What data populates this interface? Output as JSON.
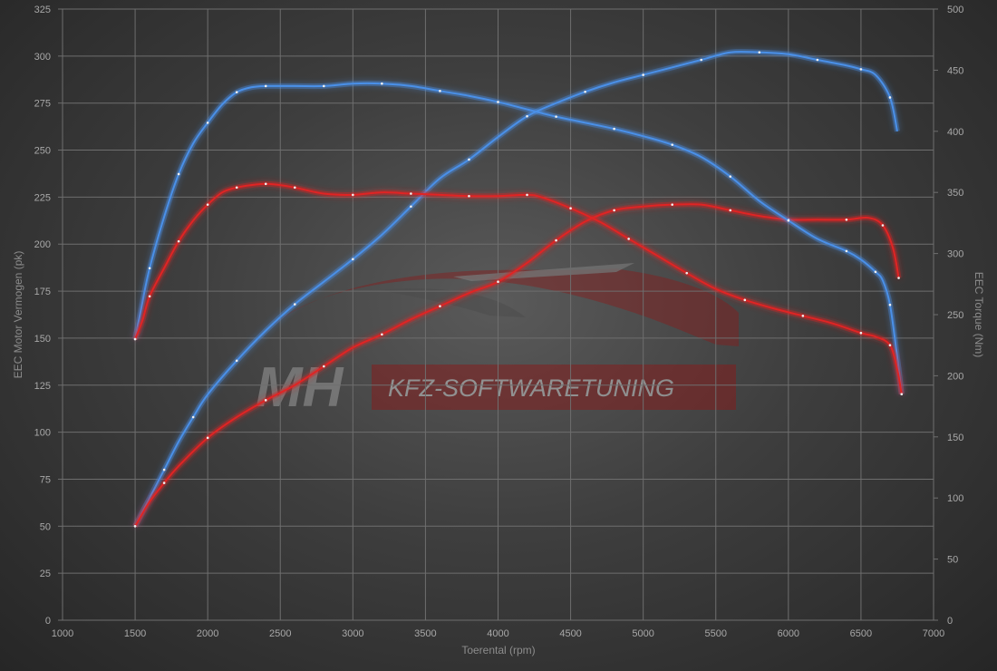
{
  "logo": {
    "initials": "MH",
    "text": "KFZ-SOFTWARETUNING"
  },
  "chart_data": {
    "type": "line",
    "xlabel": "Toerental (rpm)",
    "ylabel": "EEC Motor Vermogen (pk)",
    "ylabel_right": "EEC Torque (Nm)",
    "xlim": [
      1000,
      7000
    ],
    "ylim": [
      0,
      325
    ],
    "ylim_right": [
      0,
      500
    ],
    "x_ticks": [
      1000,
      1500,
      2000,
      2500,
      3000,
      3500,
      4000,
      4500,
      5000,
      5500,
      6000,
      6500,
      7000
    ],
    "y_ticks": [
      0,
      25,
      50,
      75,
      100,
      125,
      150,
      175,
      200,
      225,
      250,
      275,
      300,
      325
    ],
    "y_ticks_right": [
      0,
      50,
      100,
      150,
      200,
      250,
      300,
      350,
      400,
      450,
      500
    ],
    "grid": true,
    "series": [
      {
        "axis": "left",
        "color": "#4a90e8",
        "points": [
          [
            1500,
            50
          ],
          [
            1600,
            65
          ],
          [
            1700,
            80
          ],
          [
            1800,
            95
          ],
          [
            1900,
            108
          ],
          [
            2000,
            120
          ],
          [
            2200,
            138
          ],
          [
            2400,
            154
          ],
          [
            2600,
            168
          ],
          [
            2800,
            180
          ],
          [
            3000,
            192
          ],
          [
            3200,
            205
          ],
          [
            3400,
            220
          ],
          [
            3600,
            235
          ],
          [
            3800,
            245
          ],
          [
            4000,
            257
          ],
          [
            4200,
            268
          ],
          [
            4400,
            275
          ],
          [
            4600,
            281
          ],
          [
            4800,
            286
          ],
          [
            5000,
            290
          ],
          [
            5200,
            294
          ],
          [
            5400,
            298
          ],
          [
            5600,
            302
          ],
          [
            5800,
            302
          ],
          [
            6000,
            301
          ],
          [
            6200,
            298
          ],
          [
            6400,
            295
          ],
          [
            6500,
            293
          ],
          [
            6600,
            290
          ],
          [
            6700,
            278
          ],
          [
            6750,
            260
          ]
        ]
      },
      {
        "axis": "left",
        "color": "#e02424",
        "points": [
          [
            1500,
            50
          ],
          [
            1600,
            63
          ],
          [
            1700,
            73
          ],
          [
            1800,
            82
          ],
          [
            2000,
            97
          ],
          [
            2200,
            108
          ],
          [
            2400,
            117
          ],
          [
            2600,
            125
          ],
          [
            2800,
            135
          ],
          [
            3000,
            145
          ],
          [
            3200,
            152
          ],
          [
            3400,
            160
          ],
          [
            3600,
            167
          ],
          [
            3800,
            174
          ],
          [
            4000,
            180
          ],
          [
            4200,
            190
          ],
          [
            4400,
            202
          ],
          [
            4600,
            212
          ],
          [
            4800,
            218
          ],
          [
            5000,
            220
          ],
          [
            5200,
            221
          ],
          [
            5400,
            221
          ],
          [
            5600,
            218
          ],
          [
            5800,
            215
          ],
          [
            6000,
            213
          ],
          [
            6200,
            213
          ],
          [
            6400,
            213
          ],
          [
            6550,
            214
          ],
          [
            6650,
            210
          ],
          [
            6720,
            198
          ],
          [
            6760,
            182
          ]
        ]
      },
      {
        "axis": "right",
        "color": "#4a90e8",
        "points": [
          [
            1500,
            230
          ],
          [
            1550,
            260
          ],
          [
            1600,
            288
          ],
          [
            1700,
            330
          ],
          [
            1800,
            365
          ],
          [
            1900,
            390
          ],
          [
            2000,
            407
          ],
          [
            2100,
            422
          ],
          [
            2200,
            432
          ],
          [
            2300,
            436
          ],
          [
            2400,
            437
          ],
          [
            2600,
            437
          ],
          [
            2800,
            437
          ],
          [
            3000,
            439
          ],
          [
            3200,
            439
          ],
          [
            3400,
            437
          ],
          [
            3600,
            433
          ],
          [
            3800,
            429
          ],
          [
            4000,
            424
          ],
          [
            4200,
            418
          ],
          [
            4400,
            412
          ],
          [
            4600,
            407
          ],
          [
            4800,
            402
          ],
          [
            5000,
            396
          ],
          [
            5200,
            389
          ],
          [
            5400,
            379
          ],
          [
            5600,
            363
          ],
          [
            5800,
            343
          ],
          [
            6000,
            327
          ],
          [
            6200,
            312
          ],
          [
            6400,
            302
          ],
          [
            6500,
            295
          ],
          [
            6600,
            285
          ],
          [
            6650,
            278
          ],
          [
            6700,
            258
          ],
          [
            6750,
            215
          ],
          [
            6780,
            185
          ]
        ]
      },
      {
        "axis": "right",
        "color": "#e02424",
        "points": [
          [
            1500,
            230
          ],
          [
            1550,
            245
          ],
          [
            1600,
            265
          ],
          [
            1700,
            288
          ],
          [
            1800,
            310
          ],
          [
            1900,
            327
          ],
          [
            2000,
            340
          ],
          [
            2100,
            350
          ],
          [
            2200,
            354
          ],
          [
            2300,
            356
          ],
          [
            2400,
            357
          ],
          [
            2500,
            356
          ],
          [
            2600,
            354
          ],
          [
            2800,
            349
          ],
          [
            3000,
            348
          ],
          [
            3200,
            350
          ],
          [
            3400,
            349
          ],
          [
            3600,
            348
          ],
          [
            3800,
            347
          ],
          [
            4000,
            347
          ],
          [
            4200,
            348
          ],
          [
            4300,
            346
          ],
          [
            4500,
            337
          ],
          [
            4700,
            326
          ],
          [
            4900,
            312
          ],
          [
            5100,
            298
          ],
          [
            5300,
            284
          ],
          [
            5500,
            271
          ],
          [
            5700,
            262
          ],
          [
            5900,
            255
          ],
          [
            6100,
            249
          ],
          [
            6300,
            243
          ],
          [
            6500,
            235
          ],
          [
            6600,
            232
          ],
          [
            6700,
            225
          ],
          [
            6750,
            205
          ],
          [
            6780,
            185
          ]
        ]
      }
    ]
  }
}
